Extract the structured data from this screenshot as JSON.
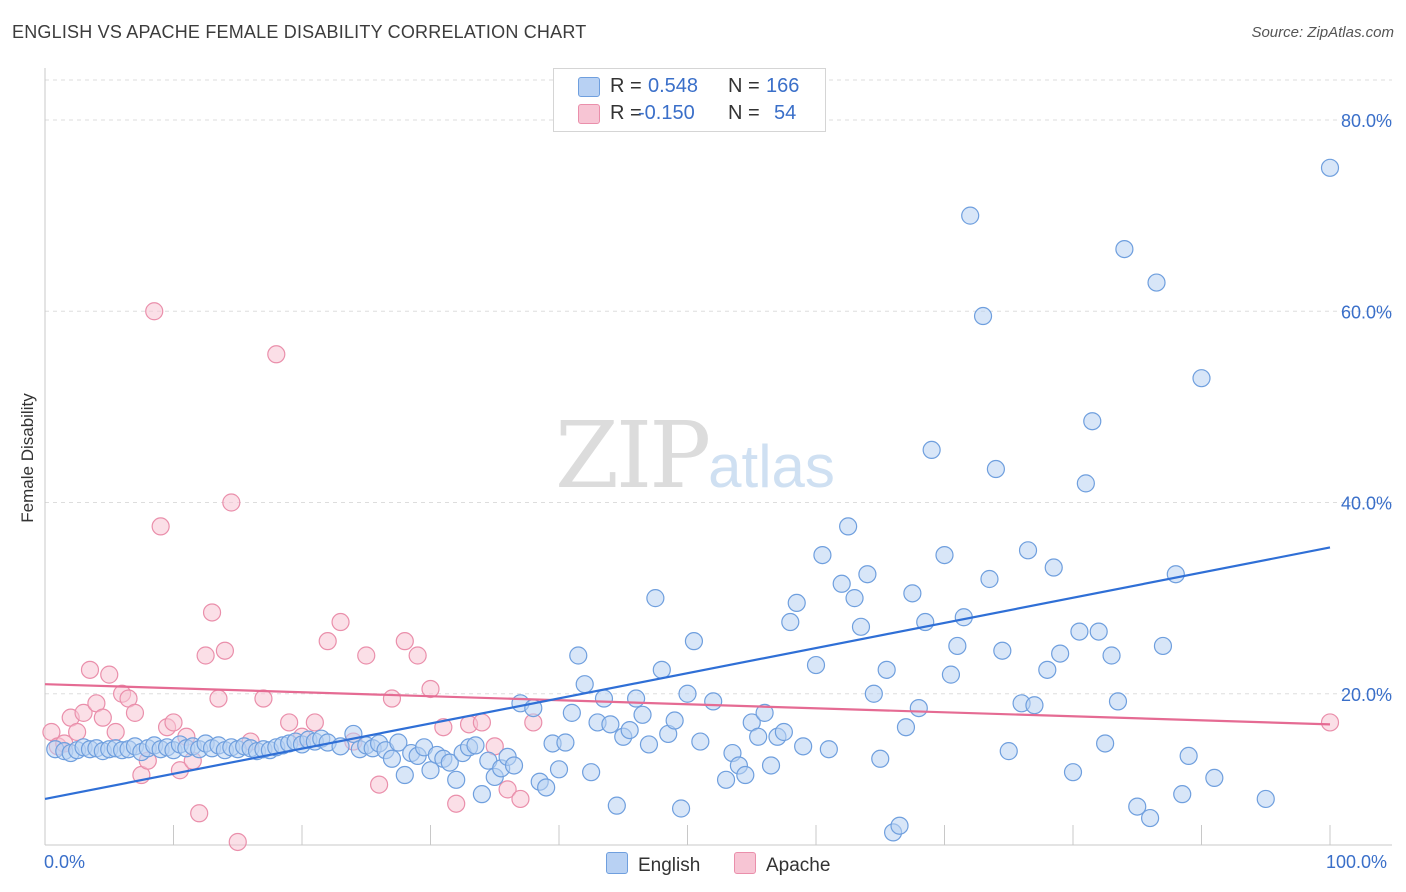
{
  "title": "ENGLISH VS APACHE FEMALE DISABILITY CORRELATION CHART",
  "source": "Source: ZipAtlas.com",
  "watermark": {
    "zip": "ZIP",
    "atlas": "atlas"
  },
  "colors": {
    "english_fill": "#b8d1f3",
    "english_stroke": "#6f9fde",
    "english_line": "#2f6fd6",
    "apache_fill": "#f7c5d4",
    "apache_stroke": "#ea8fab",
    "apache_line": "#e56b93",
    "axis_text": "#3a6fc9",
    "grid": "#dddddd"
  },
  "legend": {
    "rows": [
      {
        "series": "English",
        "r_label": "R =",
        "r_value": "0.548",
        "n_label": "N =",
        "n_value": "166"
      },
      {
        "series": "Apache",
        "r_label": "R =",
        "r_value": "-0.150",
        "n_label": "N =",
        "n_value": "54"
      }
    ]
  },
  "chart_data": {
    "type": "scatter",
    "title": "ENGLISH VS APACHE FEMALE DISABILITY CORRELATION CHART",
    "xlabel": "",
    "ylabel": "Female Disability",
    "xlim": [
      0,
      100
    ],
    "ylim": [
      0,
      80
    ],
    "x_tick_labels": [
      "0.0%",
      "100.0%"
    ],
    "y_ticks": [
      20,
      40,
      60,
      80
    ],
    "y_tick_labels": [
      "20.0%",
      "40.0%",
      "60.0%",
      "80.0%"
    ],
    "grid": true,
    "legend_position": "top-center",
    "series": [
      {
        "name": "English",
        "trend": {
          "x": [
            0,
            100
          ],
          "y": [
            9.0,
            35.3
          ]
        },
        "points": [
          [
            0.8,
            14.2
          ],
          [
            1.5,
            14.0
          ],
          [
            2,
            13.8
          ],
          [
            2.5,
            14.1
          ],
          [
            3,
            14.4
          ],
          [
            3.5,
            14.2
          ],
          [
            4,
            14.3
          ],
          [
            4.5,
            14.0
          ],
          [
            5,
            14.2
          ],
          [
            5.5,
            14.3
          ],
          [
            6,
            14.1
          ],
          [
            6.5,
            14.2
          ],
          [
            7,
            14.5
          ],
          [
            7.5,
            13.9
          ],
          [
            8,
            14.3
          ],
          [
            8.5,
            14.6
          ],
          [
            9,
            14.2
          ],
          [
            9.5,
            14.4
          ],
          [
            10,
            14.1
          ],
          [
            10.5,
            14.7
          ],
          [
            11,
            14.3
          ],
          [
            11.5,
            14.5
          ],
          [
            12,
            14.2
          ],
          [
            12.5,
            14.8
          ],
          [
            13,
            14.3
          ],
          [
            13.5,
            14.6
          ],
          [
            14,
            14.1
          ],
          [
            14.5,
            14.4
          ],
          [
            15,
            14.2
          ],
          [
            15.5,
            14.5
          ],
          [
            16,
            14.3
          ],
          [
            16.5,
            14.0
          ],
          [
            17,
            14.2
          ],
          [
            17.5,
            14.1
          ],
          [
            18,
            14.4
          ],
          [
            18.5,
            14.6
          ],
          [
            19,
            14.8
          ],
          [
            19.5,
            15.0
          ],
          [
            20,
            14.7
          ],
          [
            20.5,
            15.2
          ],
          [
            21,
            15.0
          ],
          [
            21.5,
            15.3
          ],
          [
            22,
            14.9
          ],
          [
            23,
            14.5
          ],
          [
            24,
            15.8
          ],
          [
            24.5,
            14.2
          ],
          [
            25,
            14.6
          ],
          [
            25.5,
            14.3
          ],
          [
            26,
            14.8
          ],
          [
            26.5,
            14.1
          ],
          [
            27,
            13.2
          ],
          [
            27.5,
            14.9
          ],
          [
            28,
            11.5
          ],
          [
            28.5,
            13.8
          ],
          [
            29,
            13.5
          ],
          [
            29.5,
            14.4
          ],
          [
            30,
            12.0
          ],
          [
            30.5,
            13.6
          ],
          [
            31,
            13.2
          ],
          [
            31.5,
            12.8
          ],
          [
            32,
            11.0
          ],
          [
            32.5,
            13.8
          ],
          [
            33,
            14.4
          ],
          [
            33.5,
            14.6
          ],
          [
            34,
            9.5
          ],
          [
            34.5,
            13.0
          ],
          [
            35,
            11.3
          ],
          [
            35.5,
            12.2
          ],
          [
            36,
            13.4
          ],
          [
            36.5,
            12.5
          ],
          [
            37,
            19.0
          ],
          [
            38,
            18.5
          ],
          [
            38.5,
            10.8
          ],
          [
            39,
            10.2
          ],
          [
            39.5,
            14.8
          ],
          [
            40,
            12.1
          ],
          [
            40.5,
            14.9
          ],
          [
            41,
            18.0
          ],
          [
            41.5,
            24.0
          ],
          [
            42,
            21.0
          ],
          [
            42.5,
            11.8
          ],
          [
            43,
            17.0
          ],
          [
            43.5,
            19.5
          ],
          [
            44,
            16.8
          ],
          [
            44.5,
            8.3
          ],
          [
            45,
            15.5
          ],
          [
            45.5,
            16.2
          ],
          [
            46,
            19.5
          ],
          [
            46.5,
            17.8
          ],
          [
            47,
            14.7
          ],
          [
            47.5,
            30.0
          ],
          [
            48,
            22.5
          ],
          [
            48.5,
            15.8
          ],
          [
            49,
            17.2
          ],
          [
            49.5,
            8.0
          ],
          [
            50,
            20.0
          ],
          [
            50.5,
            25.5
          ],
          [
            51,
            15.0
          ],
          [
            52,
            19.2
          ],
          [
            53,
            11.0
          ],
          [
            53.5,
            13.8
          ],
          [
            54,
            12.5
          ],
          [
            54.5,
            11.5
          ],
          [
            55,
            17.0
          ],
          [
            55.5,
            15.5
          ],
          [
            56,
            18.0
          ],
          [
            56.5,
            12.5
          ],
          [
            57,
            15.5
          ],
          [
            57.5,
            16.0
          ],
          [
            58,
            27.5
          ],
          [
            58.5,
            29.5
          ],
          [
            59,
            14.5
          ],
          [
            60,
            23.0
          ],
          [
            60.5,
            34.5
          ],
          [
            61,
            14.2
          ],
          [
            62,
            31.5
          ],
          [
            62.5,
            37.5
          ],
          [
            63,
            30.0
          ],
          [
            63.5,
            27.0
          ],
          [
            64,
            32.5
          ],
          [
            64.5,
            20.0
          ],
          [
            65,
            13.2
          ],
          [
            65.5,
            22.5
          ],
          [
            66,
            5.5
          ],
          [
            66.5,
            6.2
          ],
          [
            67,
            16.5
          ],
          [
            67.5,
            30.5
          ],
          [
            68,
            18.5
          ],
          [
            68.5,
            27.5
          ],
          [
            69,
            45.5
          ],
          [
            70,
            34.5
          ],
          [
            70.5,
            22.0
          ],
          [
            71,
            25.0
          ],
          [
            71.5,
            28.0
          ],
          [
            72,
            70.0
          ],
          [
            73,
            59.5
          ],
          [
            73.5,
            32.0
          ],
          [
            74,
            43.5
          ],
          [
            74.5,
            24.5
          ],
          [
            75,
            14.0
          ],
          [
            76,
            19.0
          ],
          [
            76.5,
            35.0
          ],
          [
            77,
            18.8
          ],
          [
            78,
            22.5
          ],
          [
            78.5,
            33.2
          ],
          [
            79,
            24.2
          ],
          [
            80,
            11.8
          ],
          [
            80.5,
            26.5
          ],
          [
            81,
            42.0
          ],
          [
            81.5,
            48.5
          ],
          [
            82,
            26.5
          ],
          [
            82.5,
            14.8
          ],
          [
            83,
            24.0
          ],
          [
            83.5,
            19.2
          ],
          [
            84,
            66.5
          ],
          [
            85,
            8.2
          ],
          [
            86,
            7.0
          ],
          [
            86.5,
            63.0
          ],
          [
            87,
            25.0
          ],
          [
            88,
            32.5
          ],
          [
            88.5,
            9.5
          ],
          [
            89,
            13.5
          ],
          [
            90,
            53.0
          ],
          [
            91,
            11.2
          ],
          [
            95,
            9.0
          ],
          [
            100,
            75.0
          ]
        ]
      },
      {
        "name": "Apache",
        "trend": {
          "x": [
            0,
            100
          ],
          "y": [
            21.0,
            16.8
          ]
        },
        "points": [
          [
            0.5,
            16.0
          ],
          [
            1,
            14.5
          ],
          [
            1.5,
            14.8
          ],
          [
            2,
            17.5
          ],
          [
            2.5,
            16.0
          ],
          [
            3,
            18.0
          ],
          [
            3.5,
            22.5
          ],
          [
            4,
            19.0
          ],
          [
            4.5,
            17.5
          ],
          [
            5,
            22.0
          ],
          [
            5.5,
            16.0
          ],
          [
            6,
            20.0
          ],
          [
            6.5,
            19.5
          ],
          [
            7,
            18.0
          ],
          [
            7.5,
            11.5
          ],
          [
            8,
            13.0
          ],
          [
            8.5,
            60.0
          ],
          [
            9,
            37.5
          ],
          [
            9.5,
            16.5
          ],
          [
            10,
            17.0
          ],
          [
            10.5,
            12.0
          ],
          [
            11,
            15.5
          ],
          [
            11.5,
            13.0
          ],
          [
            12,
            7.5
          ],
          [
            12.5,
            24.0
          ],
          [
            13,
            28.5
          ],
          [
            13.5,
            19.5
          ],
          [
            14,
            24.5
          ],
          [
            14.5,
            40.0
          ],
          [
            15,
            4.5
          ],
          [
            16,
            15.0
          ],
          [
            17,
            19.5
          ],
          [
            18,
            55.5
          ],
          [
            19,
            17.0
          ],
          [
            20,
            15.5
          ],
          [
            21,
            17.0
          ],
          [
            22,
            25.5
          ],
          [
            23,
            27.5
          ],
          [
            24,
            15.0
          ],
          [
            25,
            24.0
          ],
          [
            26,
            10.5
          ],
          [
            27,
            19.5
          ],
          [
            28,
            25.5
          ],
          [
            29,
            24.0
          ],
          [
            30,
            20.5
          ],
          [
            31,
            16.5
          ],
          [
            32,
            8.5
          ],
          [
            33,
            16.8
          ],
          [
            34,
            17.0
          ],
          [
            35,
            14.5
          ],
          [
            36,
            10.0
          ],
          [
            37,
            9.0
          ],
          [
            38,
            17.0
          ],
          [
            100,
            17.0
          ]
        ]
      }
    ]
  },
  "bottom_legend": {
    "english": "English",
    "apache": "Apache"
  }
}
